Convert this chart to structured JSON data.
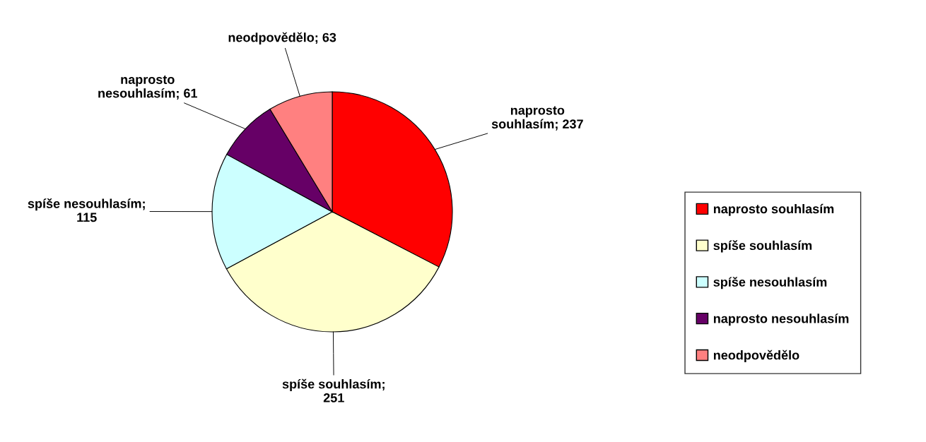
{
  "chart_data": {
    "type": "pie",
    "categories": [
      "naprosto souhlasím",
      "spíše souhlasím",
      "spíše nesouhlasím",
      "naprosto nesouhlasím",
      "neodpovědělo"
    ],
    "values": [
      237,
      251,
      115,
      61,
      63
    ],
    "colors": [
      "#ff0000",
      "#ffffcc",
      "#ccffff",
      "#660066",
      "#ff8080"
    ],
    "value_labels": [
      "naprosto\nsouhlasím; 237",
      "spíše souhlasím;\n251",
      "spíše nesouhlasím;\n115",
      "naprosto\nnesouhlasím; 61",
      "neodpovědělo; 63"
    ],
    "legend": "right"
  }
}
